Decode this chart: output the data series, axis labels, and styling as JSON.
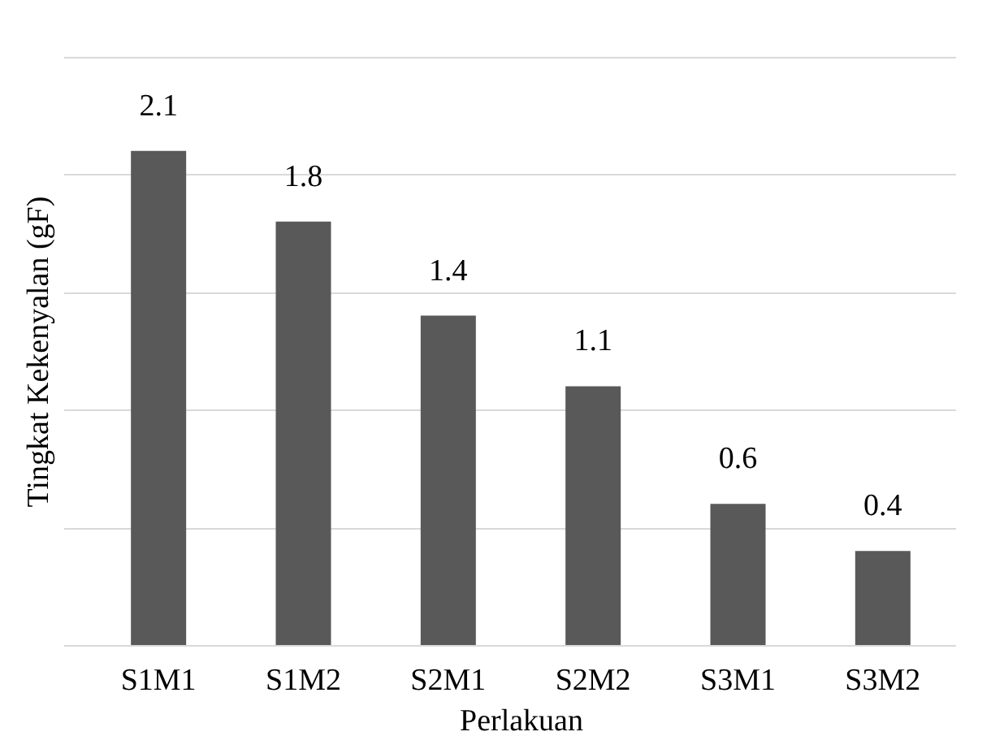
{
  "chart_data": {
    "type": "bar",
    "xlabel": "Perlakuan",
    "ylabel": "Tingkat Kekenyalan (gF)",
    "categories": [
      "S1M1",
      "S1M2",
      "S2M1",
      "S2M2",
      "S3M1",
      "S3M2"
    ],
    "values": [
      2.1,
      1.8,
      1.4,
      1.1,
      0.6,
      0.4
    ],
    "color": "#595959",
    "ylim": [
      0,
      2.5
    ],
    "yticks": [
      {
        "value": 0,
        "label": null
      },
      {
        "value": 0.5,
        "label": null
      },
      {
        "value": 1,
        "label": null
      },
      {
        "value": 1.5,
        "label": null
      },
      {
        "value": 2,
        "label": null
      },
      {
        "value": 2.5,
        "label": null
      }
    ],
    "grid": "y",
    "data_labels": true
  }
}
